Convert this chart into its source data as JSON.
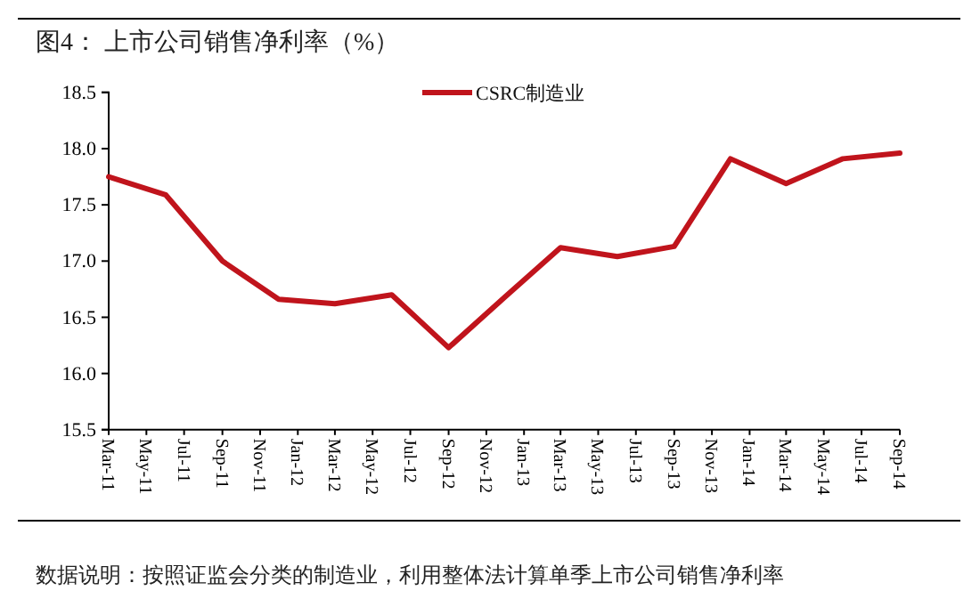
{
  "chart_data": {
    "type": "line",
    "title": "图4：  上市公司销售净利率（%）",
    "x": [
      "2011-03",
      "2011-06",
      "2011-09",
      "2011-12",
      "2012-03",
      "2012-06",
      "2012-09",
      "2012-12",
      "2013-03",
      "2013-06",
      "2013-09",
      "2013-12",
      "2014-03",
      "2014-06",
      "2014-09"
    ],
    "series": [
      {
        "name": "CSRC制造业",
        "color": "#c0141c",
        "values": [
          17.75,
          17.59,
          17.0,
          16.66,
          16.62,
          16.7,
          16.23,
          16.68,
          17.12,
          17.04,
          17.13,
          17.91,
          17.69,
          17.91,
          17.96
        ]
      }
    ],
    "xlim": [
      "2011-03",
      "2014-09"
    ],
    "xticks": [
      {
        "value": "2011-03",
        "label": "Mar-11"
      },
      {
        "value": "2011-05",
        "label": "May-11"
      },
      {
        "value": "2011-07",
        "label": "Jul-11"
      },
      {
        "value": "2011-09",
        "label": "Sep-11"
      },
      {
        "value": "2011-11",
        "label": "Nov-11"
      },
      {
        "value": "2012-01",
        "label": "Jan-12"
      },
      {
        "value": "2012-03",
        "label": "Mar-12"
      },
      {
        "value": "2012-05",
        "label": "May-12"
      },
      {
        "value": "2012-07",
        "label": "Jul-12"
      },
      {
        "value": "2012-09",
        "label": "Sep-12"
      },
      {
        "value": "2012-11",
        "label": "Nov-12"
      },
      {
        "value": "2013-01",
        "label": "Jan-13"
      },
      {
        "value": "2013-03",
        "label": "Mar-13"
      },
      {
        "value": "2013-05",
        "label": "May-13"
      },
      {
        "value": "2013-07",
        "label": "Jul-13"
      },
      {
        "value": "2013-09",
        "label": "Sep-13"
      },
      {
        "value": "2013-11",
        "label": "Nov-13"
      },
      {
        "value": "2014-01",
        "label": "Jan-14"
      },
      {
        "value": "2014-03",
        "label": "Mar-14"
      },
      {
        "value": "2014-05",
        "label": "May-14"
      },
      {
        "value": "2014-07",
        "label": "Jul-14"
      },
      {
        "value": "2014-09",
        "label": "Sep-14"
      }
    ],
    "ylim": [
      15.5,
      18.5
    ],
    "yticks": [
      18.5,
      {
        "value": 18,
        "label": "18.0"
      },
      17.5,
      {
        "value": 17,
        "label": "17.0"
      },
      16.5,
      {
        "value": 16,
        "label": "16.0"
      },
      15.5
    ],
    "grid": false,
    "legend": "top",
    "marker": "none",
    "line_style": "solid",
    "annotations": [
      "数据说明：按照证监会分类的制造业，利用整体法计算单季上市公司销售净利率"
    ]
  }
}
